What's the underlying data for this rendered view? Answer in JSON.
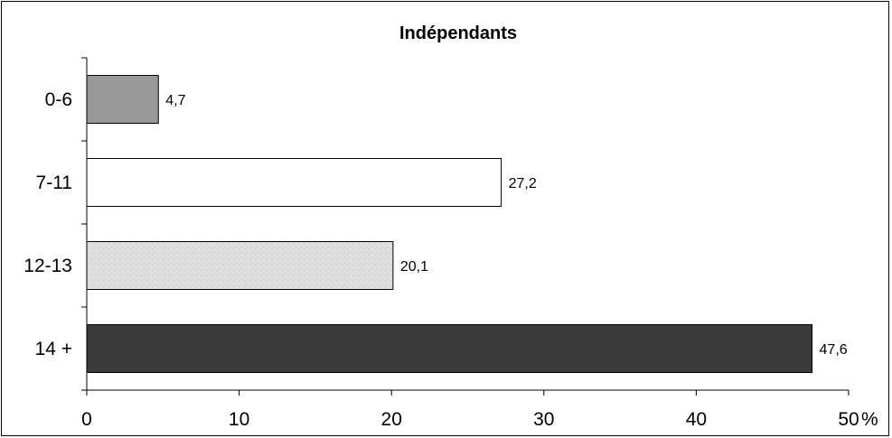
{
  "chart_data": {
    "type": "bar",
    "orientation": "horizontal",
    "title": "Indépendants",
    "categories": [
      "0-6",
      "7-11",
      "12-13",
      "14 +"
    ],
    "values": [
      4.7,
      27.2,
      20.1,
      47.6
    ],
    "data_labels": [
      "4,7",
      "27,2",
      "20,1",
      "47,6"
    ],
    "bar_colors": [
      "#999999",
      "#ffffff",
      "#dcdcdc",
      "#3a3a3a"
    ],
    "xlim": [
      0,
      50
    ],
    "x_ticks": [
      0,
      10,
      20,
      30,
      40,
      50
    ],
    "x_tick_labels": [
      "0",
      "10",
      "20",
      "30",
      "40",
      "50"
    ],
    "x_unit": "%",
    "grid": false,
    "legend": "none"
  }
}
